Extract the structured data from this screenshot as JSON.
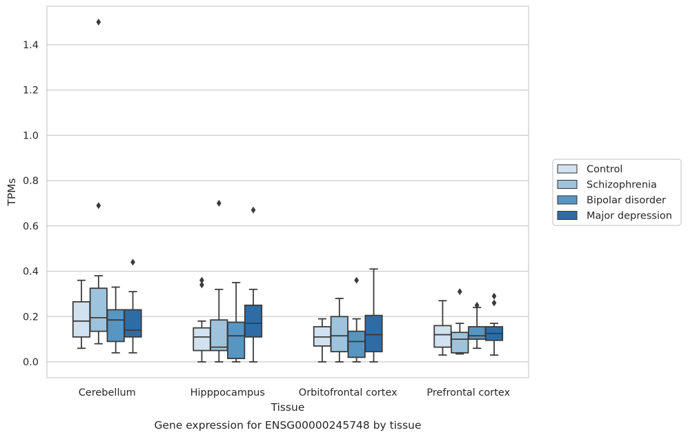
{
  "chart_data": {
    "type": "box",
    "caption": "Gene expression for ENSG00000245748 by tissue",
    "xlabel": "Tissue",
    "ylabel": "TPMs",
    "ylim": [
      -0.07,
      1.57
    ],
    "yticks": [
      0.0,
      0.2,
      0.4,
      0.6,
      0.8,
      1.0,
      1.2,
      1.4
    ],
    "ytick_labels": [
      "0.0",
      "0.2",
      "0.4",
      "0.6",
      "0.8",
      "1.0",
      "1.2",
      "1.4"
    ],
    "grid": true,
    "legend_position": "right",
    "categories": [
      "Cerebellum",
      "Hipppocampus",
      "Orbitofrontal cortex",
      "Prefrontal cortex"
    ],
    "series": [
      {
        "name": "Control",
        "color": "#d1e1f0",
        "boxes": [
          {
            "whislo": 0.06,
            "q1": 0.11,
            "med": 0.18,
            "q3": 0.265,
            "whishi": 0.36,
            "fliers": []
          },
          {
            "whislo": 0.0,
            "q1": 0.05,
            "med": 0.11,
            "q3": 0.15,
            "whishi": 0.18,
            "fliers": [
              0.34,
              0.36
            ]
          },
          {
            "whislo": 0.0,
            "q1": 0.07,
            "med": 0.11,
            "q3": 0.155,
            "whishi": 0.19,
            "fliers": []
          },
          {
            "whislo": 0.03,
            "q1": 0.065,
            "med": 0.12,
            "q3": 0.16,
            "whishi": 0.27,
            "fliers": []
          }
        ]
      },
      {
        "name": "Schizophrenia",
        "color": "#9dc4dc",
        "boxes": [
          {
            "whislo": 0.08,
            "q1": 0.135,
            "med": 0.195,
            "q3": 0.325,
            "whishi": 0.38,
            "fliers": [
              0.69,
              1.5
            ]
          },
          {
            "whislo": 0.0,
            "q1": 0.05,
            "med": 0.065,
            "q3": 0.185,
            "whishi": 0.32,
            "fliers": [
              0.7
            ]
          },
          {
            "whislo": 0.0,
            "q1": 0.045,
            "med": 0.115,
            "q3": 0.2,
            "whishi": 0.28,
            "fliers": []
          },
          {
            "whislo": 0.035,
            "q1": 0.04,
            "med": 0.1,
            "q3": 0.13,
            "whishi": 0.17,
            "fliers": [
              0.31
            ]
          }
        ]
      },
      {
        "name": "Bipolar disorder",
        "color": "#5795c3",
        "boxes": [
          {
            "whislo": 0.04,
            "q1": 0.09,
            "med": 0.185,
            "q3": 0.23,
            "whishi": 0.33,
            "fliers": []
          },
          {
            "whislo": 0.0,
            "q1": 0.015,
            "med": 0.115,
            "q3": 0.175,
            "whishi": 0.35,
            "fliers": []
          },
          {
            "whislo": 0.0,
            "q1": 0.02,
            "med": 0.09,
            "q3": 0.135,
            "whishi": 0.19,
            "fliers": [
              0.36
            ]
          },
          {
            "whislo": 0.06,
            "q1": 0.1,
            "med": 0.115,
            "q3": 0.155,
            "whishi": 0.24,
            "fliers": [
              0.25
            ]
          }
        ]
      },
      {
        "name": "Major depression",
        "color": "#2e6ca6",
        "boxes": [
          {
            "whislo": 0.04,
            "q1": 0.11,
            "med": 0.14,
            "q3": 0.23,
            "whishi": 0.31,
            "fliers": [
              0.44
            ]
          },
          {
            "whislo": 0.0,
            "q1": 0.11,
            "med": 0.17,
            "q3": 0.25,
            "whishi": 0.32,
            "fliers": [
              0.67
            ]
          },
          {
            "whislo": 0.0,
            "q1": 0.045,
            "med": 0.12,
            "q3": 0.205,
            "whishi": 0.41,
            "fliers": []
          },
          {
            "whislo": 0.03,
            "q1": 0.095,
            "med": 0.125,
            "q3": 0.155,
            "whishi": 0.17,
            "fliers": [
              0.26,
              0.29
            ]
          }
        ]
      }
    ]
  }
}
